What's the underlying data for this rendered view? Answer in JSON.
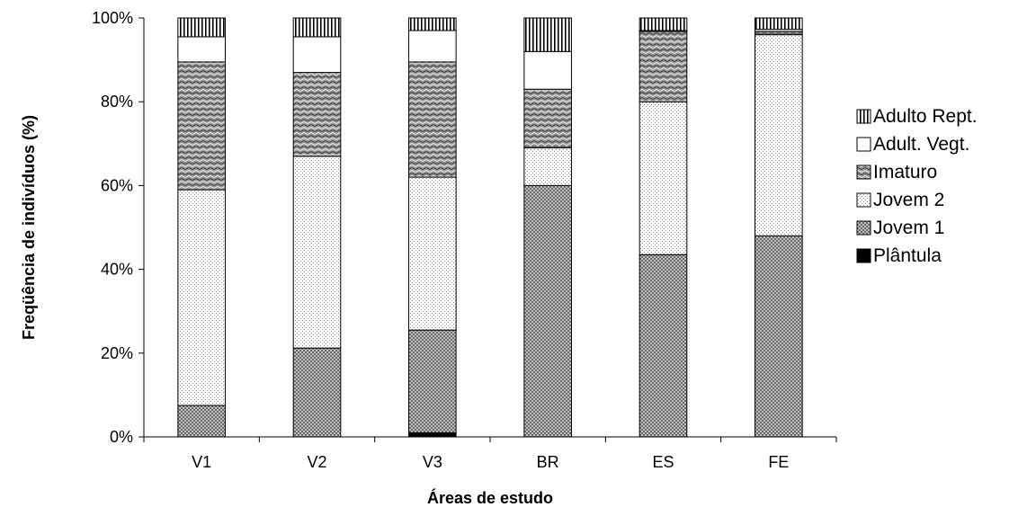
{
  "chart_data": {
    "type": "bar",
    "stacked": true,
    "percent": true,
    "title": "",
    "xlabel": "Áreas de estudo",
    "ylabel": "Freqüência de indivíduos (%)",
    "ylim": [
      0,
      100
    ],
    "yticks": [
      "0%",
      "20%",
      "40%",
      "60%",
      "80%",
      "100%"
    ],
    "categories": [
      "V1",
      "V2",
      "V3",
      "BR",
      "ES",
      "FE"
    ],
    "series": [
      {
        "name": "Plântula",
        "pattern": "solid-black",
        "values": [
          0,
          0,
          1,
          0,
          0,
          0
        ]
      },
      {
        "name": "Jovem 1",
        "pattern": "dense-cross",
        "values": [
          7.5,
          21.2,
          24.5,
          60,
          43.5,
          48
        ]
      },
      {
        "name": "Jovem 2",
        "pattern": "fine-dots",
        "values": [
          51.5,
          45.8,
          36.5,
          9,
          36.5,
          48
        ]
      },
      {
        "name": "Imaturo",
        "pattern": "wavy-hatch",
        "values": [
          30.5,
          20,
          27.5,
          14,
          16.8,
          0.8
        ]
      },
      {
        "name": "Adult. Vegt.",
        "pattern": "white",
        "values": [
          6,
          8.5,
          7.5,
          9,
          0.2,
          0.5
        ]
      },
      {
        "name": "Adulto Rept.",
        "pattern": "vertical-lines",
        "values": [
          4.5,
          4.5,
          3,
          8,
          3,
          2.7
        ]
      }
    ],
    "legend_position": "right",
    "grid": false
  }
}
